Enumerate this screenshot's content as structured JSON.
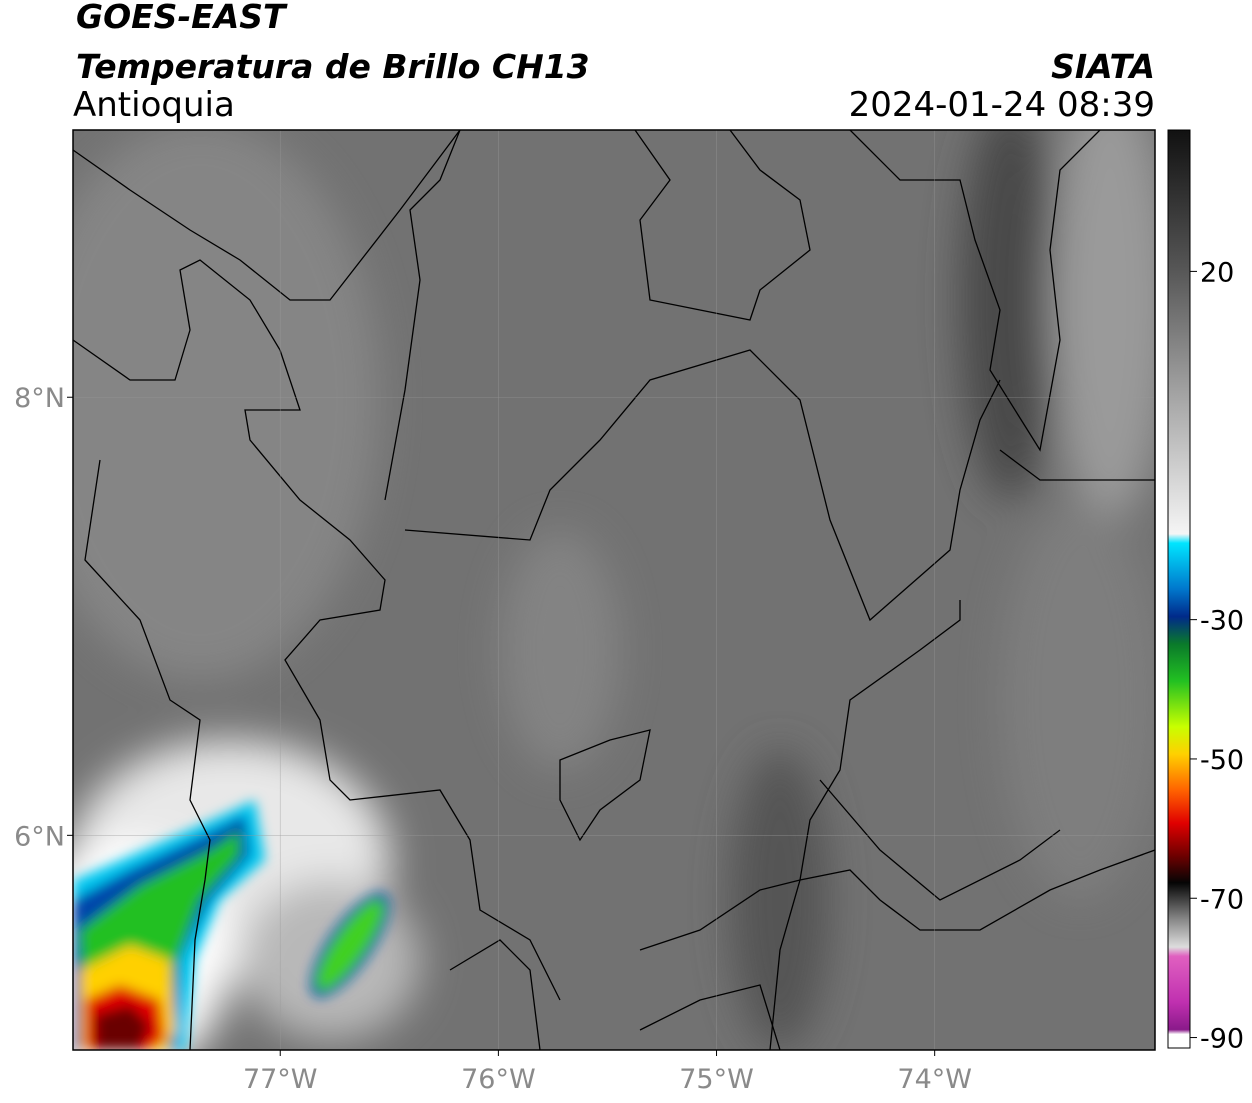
{
  "header": {
    "title": "GOES-EAST",
    "subtitle": "Temperatura de Brillo CH13",
    "region": "Antioquia",
    "source": "SIATA",
    "datetime": "2024-01-24 08:39"
  },
  "map": {
    "xlim": [
      -77.95,
      -72.99
    ],
    "ylim": [
      5.02,
      9.22
    ],
    "xticks": [
      {
        "value": -77,
        "label": "77°W"
      },
      {
        "value": -76,
        "label": "76°W"
      },
      {
        "value": -75,
        "label": "75°W"
      },
      {
        "value": -74,
        "label": "74°W"
      }
    ],
    "yticks": [
      {
        "value": 6,
        "label": "6°N"
      },
      {
        "value": 8,
        "label": "8°N"
      }
    ],
    "grid": true
  },
  "colorbar": {
    "lim": [
      -91.5,
      40.3
    ],
    "ticks": [
      20,
      -30,
      -50,
      -70,
      -90
    ]
  }
}
